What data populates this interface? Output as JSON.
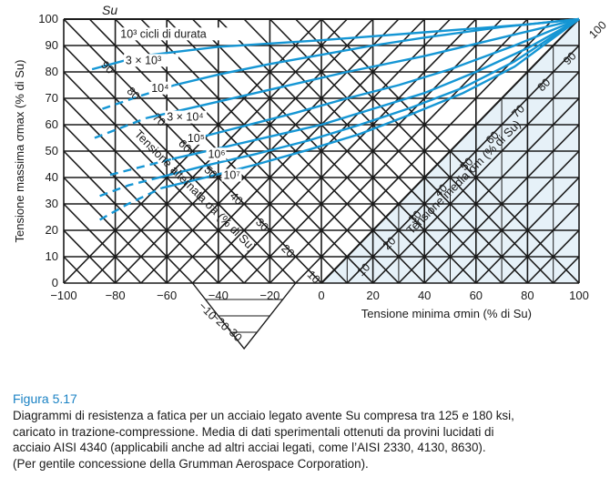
{
  "chart_data": {
    "type": "line",
    "title": "",
    "xlabel": "Tensione minima σmin (% di Su)",
    "ylabel": "Tensione massima σmax (% di Su)",
    "top_label": "Su",
    "xlim": [
      -100,
      100
    ],
    "ylim": [
      0,
      100
    ],
    "x_ticks": [
      "−100",
      "−80",
      "−60",
      "−40",
      "−20",
      "0",
      "20",
      "40",
      "60",
      "80",
      "100"
    ],
    "y_ticks": [
      "0",
      "10",
      "20",
      "30",
      "40",
      "50",
      "60",
      "70",
      "80",
      "90",
      "100"
    ],
    "mean_axis": {
      "label": "Tensione media σm (% di Su)",
      "ticks": [
        "10",
        "20",
        "30",
        "40",
        "50",
        "60",
        "70",
        "80",
        "90",
        "100"
      ]
    },
    "alternating_axis": {
      "label": "Tensione alternata σa (% di Su)",
      "ticks": [
        "90",
        "80",
        "70",
        "60",
        "50",
        "40",
        "30",
        "20",
        "10",
        "−10",
        "−20",
        "−30"
      ]
    },
    "grid": true,
    "colors": {
      "curves": "#1596d4",
      "grid": "#1a1a1a",
      "shade": "#e6f1f8",
      "caption": "#1a82c4"
    },
    "series": [
      {
        "name": "10³ cicli di durata",
        "style": "solid",
        "x": [
          -89,
          -70,
          -40,
          0,
          40,
          80,
          100
        ],
        "y": [
          81,
          86,
          89.5,
          92,
          95,
          98,
          100
        ]
      },
      {
        "name": "3 × 10³",
        "style": "solid",
        "x": [
          -57,
          -40,
          -20,
          0,
          20,
          40,
          70,
          100
        ],
        "y": [
          75,
          79,
          83,
          86.5,
          90,
          93,
          97,
          100
        ]
      },
      {
        "name": "",
        "style": "dashed",
        "x": [
          -85,
          -70,
          -57
        ],
        "y": [
          66,
          71,
          75
        ]
      },
      {
        "name": "10⁴",
        "style": "solid",
        "x": [
          -68,
          -50,
          -30,
          -10,
          10,
          40,
          70,
          100
        ],
        "y": [
          62.5,
          66.5,
          71,
          75.5,
          80,
          86,
          93,
          100
        ]
      },
      {
        "name": "3 × 10⁴",
        "style": "solid",
        "x": [
          -48,
          -30,
          -10,
          10,
          30,
          50,
          75,
          100
        ],
        "y": [
          55,
          59.5,
          64.5,
          70,
          75,
          81,
          90,
          100
        ]
      },
      {
        "name": "",
        "style": "dashed",
        "x": [
          -88,
          -68
        ],
        "y": [
          55,
          62.5
        ]
      },
      {
        "name": "10⁵",
        "style": "solid",
        "x": [
          -58,
          -40,
          -20,
          0,
          20,
          40,
          60,
          80,
          100
        ],
        "y": [
          47,
          51,
          55.5,
          60,
          66,
          72,
          80,
          89,
          100
        ]
      },
      {
        "name": "",
        "style": "dashed",
        "x": [
          -82,
          -70,
          -58
        ],
        "y": [
          41,
          44,
          47
        ]
      },
      {
        "name": "10⁶",
        "style": "solid",
        "x": [
          -63,
          -45,
          -25,
          -5,
          15,
          35,
          55,
          75,
          100
        ],
        "y": [
          40,
          44.5,
          49,
          54,
          60,
          66.5,
          74,
          84,
          100
        ]
      },
      {
        "name": "",
        "style": "dashed",
        "x": [
          -86,
          -75,
          -63
        ],
        "y": [
          33,
          37,
          40
        ]
      },
      {
        "name": "10⁷",
        "style": "solid",
        "x": [
          -62,
          -45,
          -25,
          -5,
          15,
          35,
          55,
          75,
          100
        ],
        "y": [
          36,
          40,
          45,
          50.5,
          56.5,
          64,
          72,
          82,
          100
        ]
      },
      {
        "name": "",
        "style": "dashed",
        "x": [
          -86,
          -75,
          -62
        ],
        "y": [
          24,
          30,
          36
        ]
      }
    ]
  },
  "caption": {
    "label": "Figura 5.17",
    "text": "Diagrammi di resistenza a fatica per un acciaio legato avente Su compresa tra 125 e 180 ksi,\ncaricato in trazione-compressione. Media di dati sperimentali ottenuti da provini lucidati di\nacciaio AISI 4340 (applicabili anche ad altri acciai legati, come l’AISI 2330, 4130, 8630).\n(Per gentile concessione della Grumman Aerospace Corporation)."
  }
}
